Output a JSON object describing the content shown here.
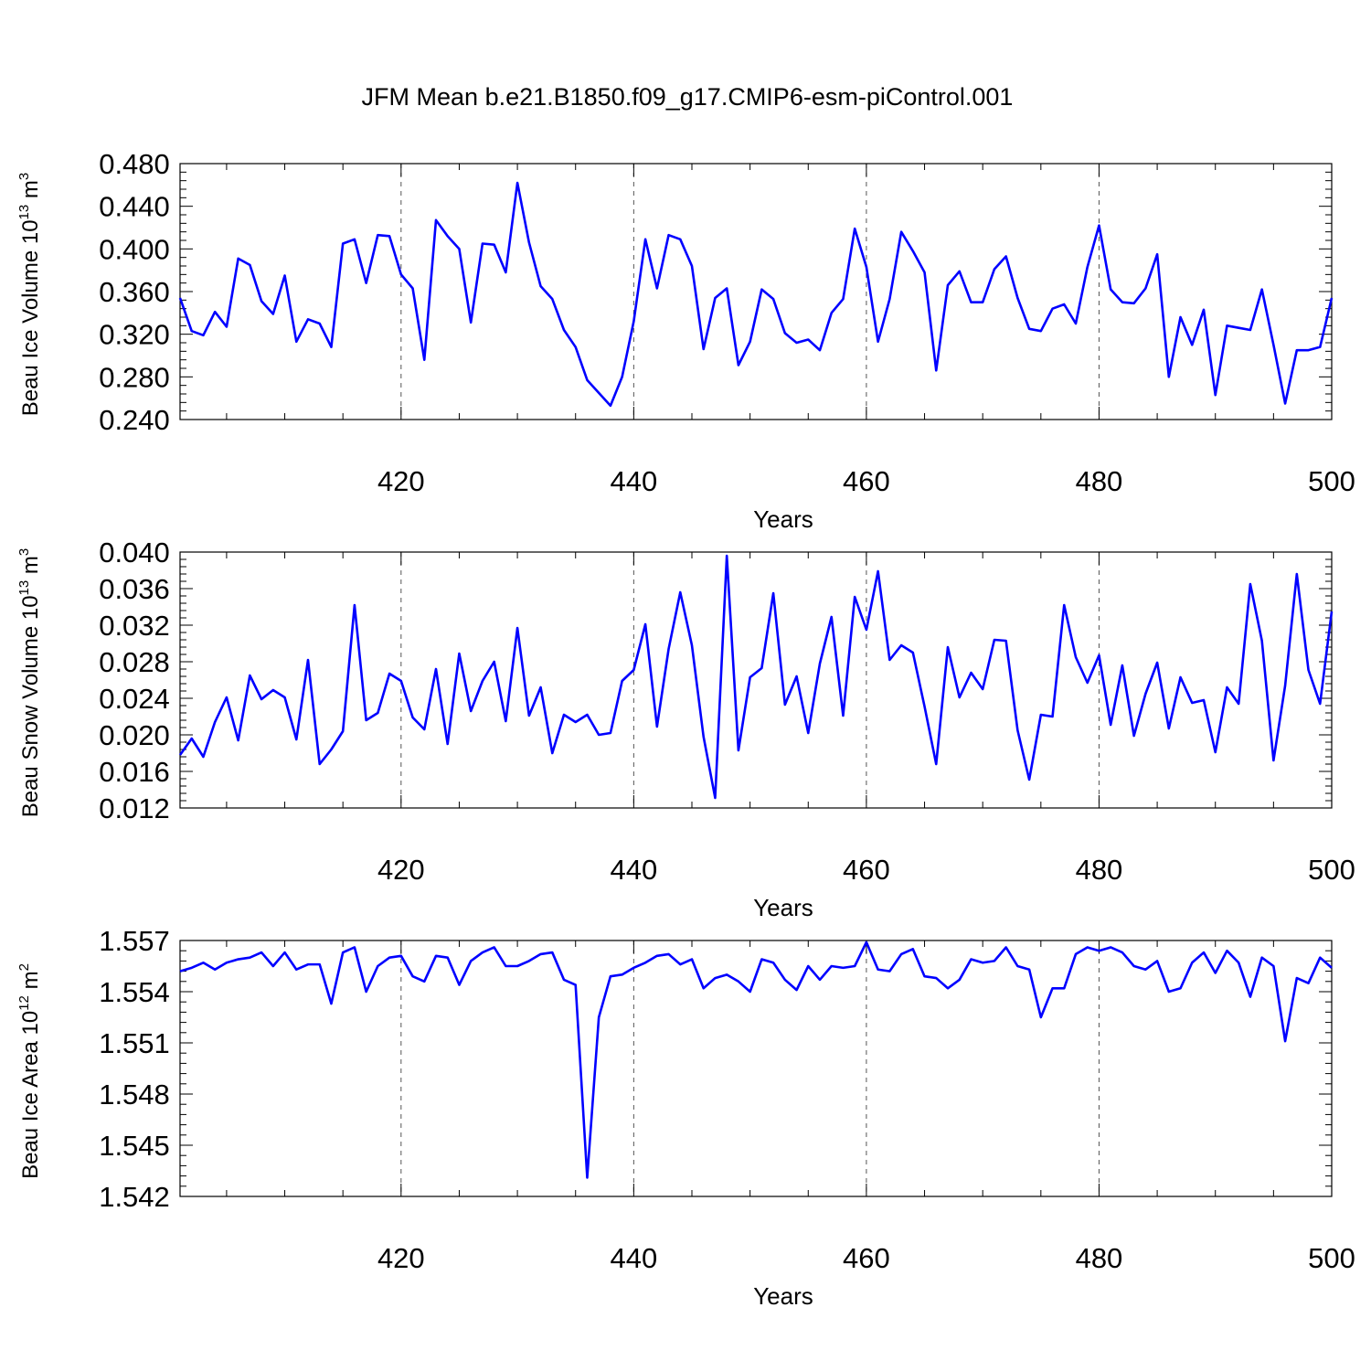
{
  "title": "JFM Mean b.e21.B1850.f09_g17.CMIP6-esm-piControl.001",
  "chart_data": [
    {
      "type": "line",
      "xlabel": "Years",
      "ylabel": {
        "base": "Beau Ice Volume 10",
        "exp1": "13",
        "unit": " m",
        "exp2": "3"
      },
      "xlim": [
        401,
        500
      ],
      "ylim": [
        0.24,
        0.48
      ],
      "xticks": [
        "420",
        "440",
        "460",
        "480",
        "500"
      ],
      "yticks": [
        "0.240",
        "0.280",
        "0.320",
        "0.360",
        "0.400",
        "0.440",
        "0.480"
      ],
      "x_start": 401,
      "values": [
        0.354,
        0.323,
        0.319,
        0.341,
        0.327,
        0.391,
        0.385,
        0.351,
        0.339,
        0.375,
        0.313,
        0.334,
        0.33,
        0.308,
        0.405,
        0.409,
        0.368,
        0.413,
        0.412,
        0.376,
        0.363,
        0.296,
        0.427,
        0.412,
        0.4,
        0.331,
        0.405,
        0.404,
        0.378,
        0.462,
        0.406,
        0.365,
        0.353,
        0.324,
        0.308,
        0.277,
        0.265,
        0.253,
        0.28,
        0.332,
        0.409,
        0.363,
        0.413,
        0.409,
        0.384,
        0.306,
        0.354,
        0.363,
        0.291,
        0.313,
        0.362,
        0.353,
        0.321,
        0.312,
        0.315,
        0.305,
        0.34,
        0.353,
        0.419,
        0.383,
        0.313,
        0.353,
        0.416,
        0.398,
        0.378,
        0.286,
        0.366,
        0.379,
        0.35,
        0.35,
        0.381,
        0.393,
        0.354,
        0.325,
        0.323,
        0.344,
        0.348,
        0.33,
        0.383,
        0.422,
        0.362,
        0.35,
        0.349,
        0.363,
        0.395,
        0.28,
        0.336,
        0.31,
        0.343,
        0.263,
        0.328,
        0.326,
        0.324,
        0.362,
        0.31,
        0.255,
        0.305,
        0.305,
        0.308,
        0.354
      ]
    },
    {
      "type": "line",
      "xlabel": "Years",
      "ylabel": {
        "base": "Beau Snow Volume 10",
        "exp1": "13",
        "unit": " m",
        "exp2": "3"
      },
      "xlim": [
        401,
        500
      ],
      "ylim": [
        0.012,
        0.04
      ],
      "xticks": [
        "420",
        "440",
        "460",
        "480",
        "500"
      ],
      "yticks": [
        "0.012",
        "0.016",
        "0.020",
        "0.024",
        "0.028",
        "0.032",
        "0.036",
        "0.040"
      ],
      "x_start": 401,
      "values": [
        0.0178,
        0.0196,
        0.0176,
        0.0214,
        0.0241,
        0.0194,
        0.0265,
        0.0239,
        0.0249,
        0.0241,
        0.0195,
        0.0282,
        0.0168,
        0.0184,
        0.0204,
        0.0342,
        0.0216,
        0.0224,
        0.0267,
        0.0259,
        0.0219,
        0.0206,
        0.0272,
        0.019,
        0.0289,
        0.0226,
        0.0259,
        0.028,
        0.0215,
        0.0317,
        0.0221,
        0.0252,
        0.018,
        0.0222,
        0.0214,
        0.0222,
        0.02,
        0.0202,
        0.0259,
        0.0271,
        0.0321,
        0.0209,
        0.0294,
        0.0356,
        0.0298,
        0.0198,
        0.0131,
        0.0396,
        0.0183,
        0.0263,
        0.0273,
        0.0355,
        0.0233,
        0.0264,
        0.0202,
        0.0278,
        0.0329,
        0.0221,
        0.0351,
        0.0315,
        0.0379,
        0.0282,
        0.0298,
        0.029,
        0.0231,
        0.0168,
        0.0296,
        0.0241,
        0.0268,
        0.025,
        0.0304,
        0.0303,
        0.0205,
        0.0151,
        0.0222,
        0.022,
        0.0342,
        0.0285,
        0.0257,
        0.0287,
        0.0211,
        0.0276,
        0.0199,
        0.0245,
        0.0279,
        0.0207,
        0.0263,
        0.0235,
        0.0238,
        0.0181,
        0.0252,
        0.0234,
        0.0365,
        0.0303,
        0.0172,
        0.0254,
        0.0376,
        0.0271,
        0.0234,
        0.0335
      ]
    },
    {
      "type": "line",
      "xlabel": "Years",
      "ylabel": {
        "base": "Beau Ice Area 10",
        "exp1": "12",
        "unit": " m",
        "exp2": "2"
      },
      "xlim": [
        401,
        500
      ],
      "ylim": [
        1.542,
        1.557
      ],
      "xticks": [
        "420",
        "440",
        "460",
        "480",
        "500"
      ],
      "yticks": [
        "1.542",
        "1.545",
        "1.548",
        "1.551",
        "1.554",
        "1.557"
      ],
      "x_start": 401,
      "values": [
        1.5552,
        1.5554,
        1.5557,
        1.5553,
        1.5557,
        1.5559,
        1.556,
        1.5563,
        1.5555,
        1.5563,
        1.5553,
        1.5556,
        1.5556,
        1.5533,
        1.5563,
        1.5566,
        1.554,
        1.5555,
        1.556,
        1.5561,
        1.5549,
        1.5546,
        1.5561,
        1.556,
        1.5544,
        1.5558,
        1.5563,
        1.5566,
        1.5555,
        1.5555,
        1.5558,
        1.5562,
        1.5563,
        1.5547,
        1.5544,
        1.5431,
        1.5525,
        1.5549,
        1.555,
        1.5554,
        1.5557,
        1.5561,
        1.5562,
        1.5556,
        1.5559,
        1.5542,
        1.5548,
        1.555,
        1.5546,
        1.554,
        1.5559,
        1.5557,
        1.5547,
        1.5541,
        1.5555,
        1.5547,
        1.5555,
        1.5554,
        1.5555,
        1.5569,
        1.5553,
        1.5552,
        1.5562,
        1.5565,
        1.5549,
        1.5548,
        1.5542,
        1.5547,
        1.5559,
        1.5557,
        1.5558,
        1.5566,
        1.5555,
        1.5553,
        1.5525,
        1.5542,
        1.5542,
        1.5562,
        1.5566,
        1.5564,
        1.5566,
        1.5563,
        1.5555,
        1.5553,
        1.5558,
        1.554,
        1.5542,
        1.5557,
        1.5563,
        1.5551,
        1.5564,
        1.5557,
        1.5537,
        1.556,
        1.5555,
        1.5511,
        1.5548,
        1.5545,
        1.556,
        1.5554
      ]
    }
  ]
}
